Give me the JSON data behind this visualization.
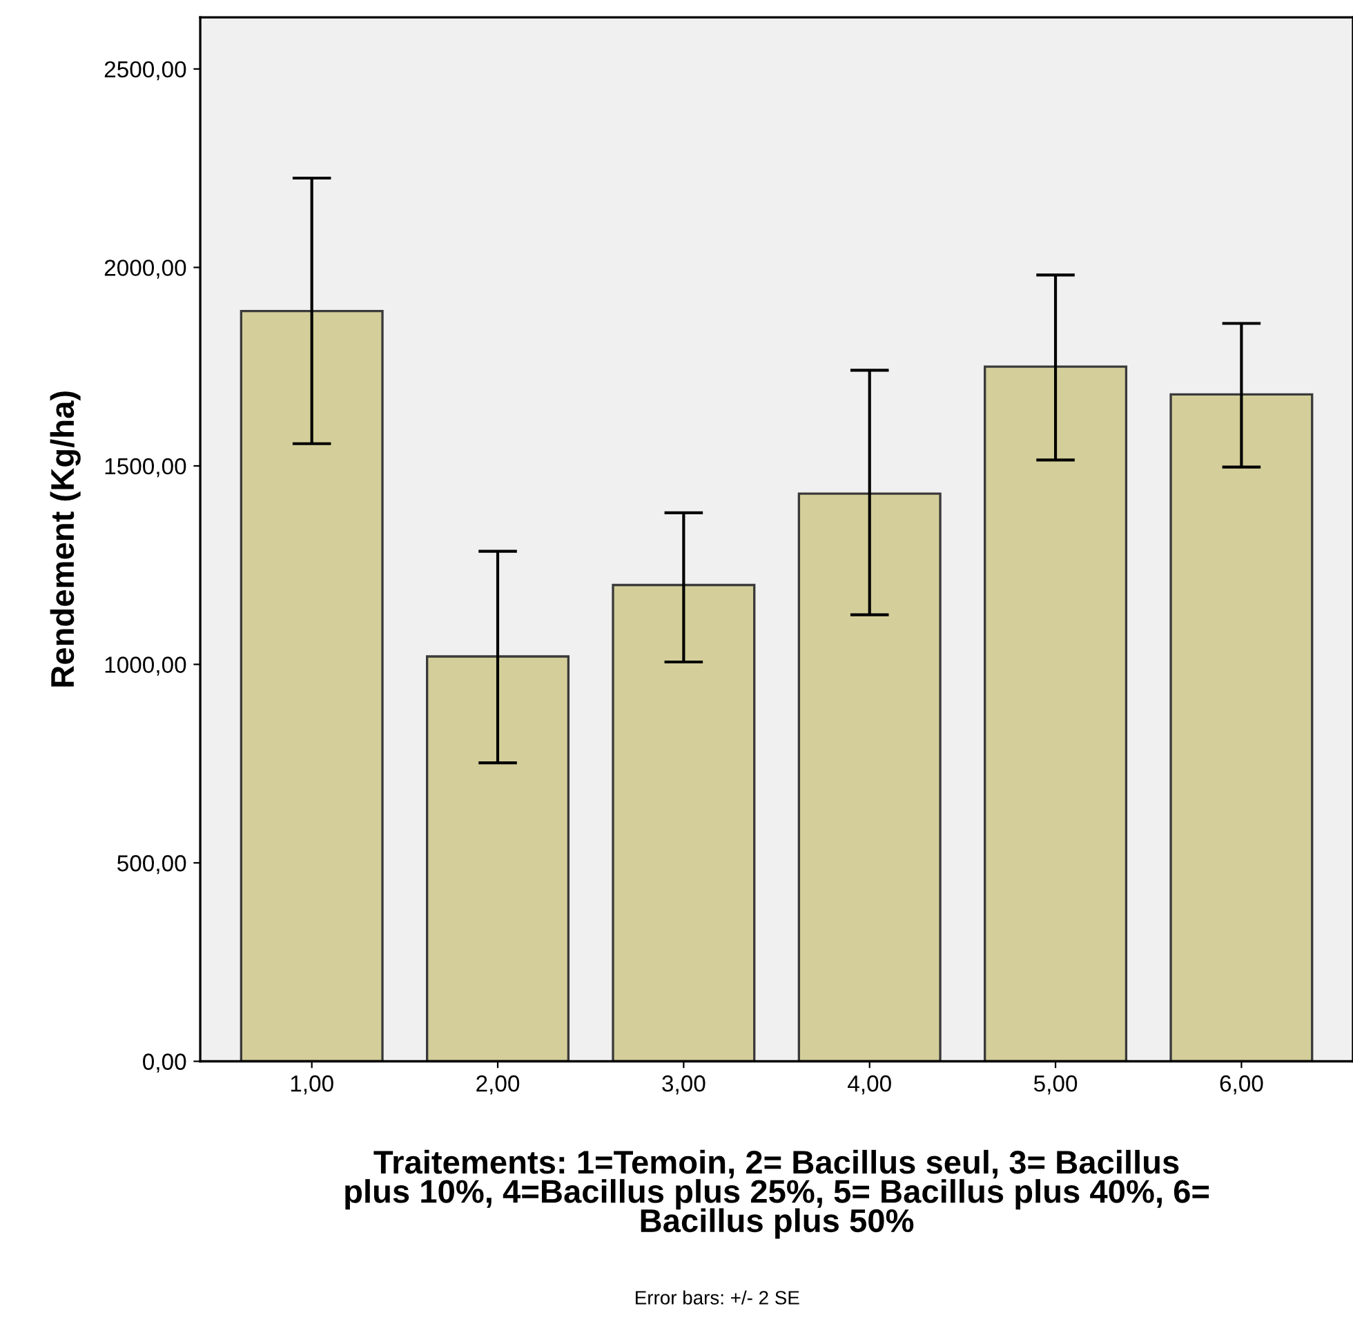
{
  "chart_data": {
    "type": "bar",
    "xlabel": "Traitements: 1=Temoin, 2= Bacillus seul, 3= Bacillus\nplus 10%, 4=Bacillus plus 25%, 5= Bacillus plus 40%, 6=\nBacillus plus 50%",
    "ylabel": "Rendement (Kg/ha)",
    "annotations": [
      "Error bars: +/- 2 SE"
    ],
    "categories": [
      "1,00",
      "2,00",
      "3,00",
      "4,00",
      "5,00",
      "6,00"
    ],
    "values": [
      1890,
      1020,
      1200,
      1430,
      1750,
      1680
    ],
    "errors": [
      [
        1556,
        2225
      ],
      [
        752,
        1285
      ],
      [
        1006,
        1382
      ],
      [
        1125,
        1741
      ],
      [
        1515,
        1981
      ],
      [
        1497,
        1859
      ]
    ],
    "color": "#d4cf9a",
    "ylim": [
      0,
      2630
    ],
    "yticks": [
      {
        "value": 0,
        "label": "0,00"
      },
      {
        "value": 500,
        "label": "500,00"
      },
      {
        "value": 1000,
        "label": "1000,00"
      },
      {
        "value": 1500,
        "label": "1500,00"
      },
      {
        "value": 2000,
        "label": "2000,00"
      },
      {
        "value": 2500,
        "label": "2500,00"
      }
    ],
    "grid": false
  }
}
